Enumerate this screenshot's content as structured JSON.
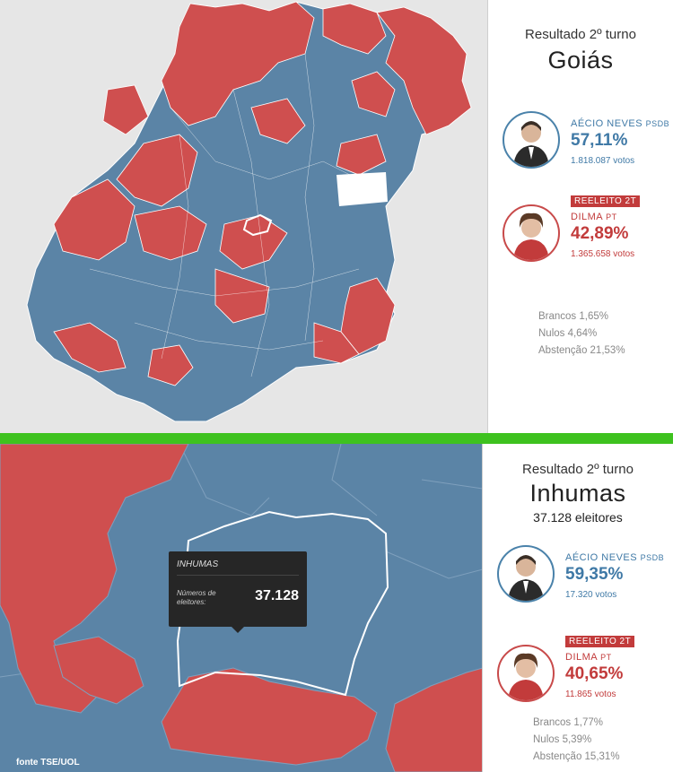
{
  "state": {
    "result_title": "Resultado 2º turno",
    "name": "Goiás",
    "candidates": [
      {
        "name": "AÉCIO NEVES",
        "party": "PSDB",
        "pct": "57,11%",
        "votes": "1.818.087 votos",
        "color": "#3f79a6"
      },
      {
        "badge": "REELEITO 2T",
        "name": "DILMA",
        "party": "PT",
        "pct": "42,89%",
        "votes": "1.365.658 votos",
        "color": "#c23b3b"
      }
    ],
    "stats": [
      "Brancos 1,65%",
      "Nulos 4,64%",
      "Abstenção 21,53%"
    ]
  },
  "city": {
    "result_title": "Resultado 2º turno",
    "name": "Inhumas",
    "electors": "37.128 eleitores",
    "candidates": [
      {
        "name": "AÉCIO NEVES",
        "party": "PSDB",
        "pct": "59,35%",
        "votes": "17.320 votos",
        "color": "#3f79a6"
      },
      {
        "badge": "REELEITO 2T",
        "name": "DILMA",
        "party": "PT",
        "pct": "40,65%",
        "votes": "11.865 votos",
        "color": "#c23b3b"
      }
    ],
    "stats": [
      "Brancos 1,77%",
      "Nulos 5,39%",
      "Abstenção 15,31%"
    ]
  },
  "tooltip": {
    "name": "INHUMAS",
    "label": "Números de eleitores:",
    "value": "37.128"
  },
  "source": "fonte TSE/UOL",
  "colors": {
    "psdb": "#5b84a6",
    "pt": "#cf4f4f",
    "divider": "#3ec21f"
  }
}
